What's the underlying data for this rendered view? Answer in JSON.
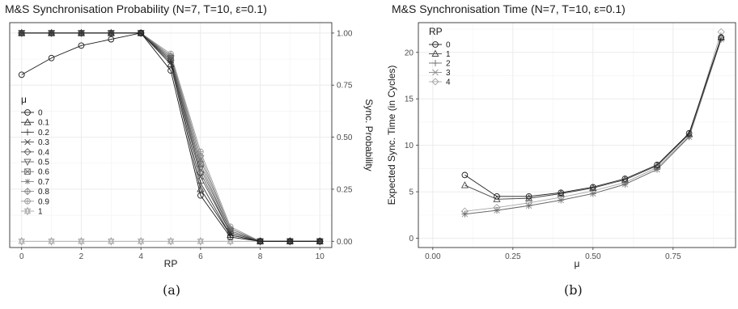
{
  "captions": [
    "(a)",
    "(b)"
  ],
  "chart_data": [
    {
      "type": "line",
      "title": "M&S Synchronisation Probability (N=7, T=10, ε=0.1)",
      "xlabel": "RP",
      "ylabel": "Sync. Probability",
      "y_axis_side": "right",
      "xlim": [
        -0.4,
        10.4
      ],
      "ylim": [
        -0.03,
        1.05
      ],
      "x_ticks": [
        0,
        2,
        4,
        6,
        8,
        10
      ],
      "x_tick_labels": [
        "0",
        "2",
        "4",
        "6",
        "8",
        "10"
      ],
      "y_ticks": [
        0,
        0.25,
        0.5,
        0.75,
        1
      ],
      "y_tick_labels": [
        "0.00",
        "0.25",
        "0.50",
        "0.75",
        "1.00"
      ],
      "grid": true,
      "legend": {
        "title": "μ",
        "placement": "left-middle"
      },
      "x": [
        0,
        1,
        2,
        3,
        4,
        5,
        6,
        7,
        8,
        9,
        10
      ],
      "series": [
        {
          "name": "0",
          "color": "#1a1a1a",
          "marker": "circle",
          "values": [
            0.8,
            0.88,
            0.94,
            0.97,
            1.0,
            0.82,
            0.22,
            0.02,
            0.0,
            0.0,
            0.0
          ]
        },
        {
          "name": "0.1",
          "color": "#2e2e2e",
          "marker": "triangle",
          "values": [
            1.0,
            1.0,
            1.0,
            1.0,
            1.0,
            0.85,
            0.25,
            0.03,
            0.0,
            0.0,
            0.0
          ]
        },
        {
          "name": "0.2",
          "color": "#3c3c3c",
          "marker": "plus",
          "values": [
            1.0,
            1.0,
            1.0,
            1.0,
            1.0,
            0.86,
            0.28,
            0.03,
            0.0,
            0.0,
            0.0
          ]
        },
        {
          "name": "0.3",
          "color": "#4a4a4a",
          "marker": "x",
          "values": [
            1.0,
            1.0,
            1.0,
            1.0,
            1.0,
            0.87,
            0.31,
            0.04,
            0.0,
            0.0,
            0.0
          ]
        },
        {
          "name": "0.4",
          "color": "#575757",
          "marker": "diamond",
          "values": [
            1.0,
            1.0,
            1.0,
            1.0,
            1.0,
            0.87,
            0.33,
            0.04,
            0.0,
            0.0,
            0.0
          ]
        },
        {
          "name": "0.5",
          "color": "#646464",
          "marker": "triangle-down",
          "values": [
            1.0,
            1.0,
            1.0,
            1.0,
            1.0,
            0.88,
            0.35,
            0.05,
            0.0,
            0.0,
            0.0
          ]
        },
        {
          "name": "0.6",
          "color": "#717171",
          "marker": "square-cross",
          "values": [
            1.0,
            1.0,
            1.0,
            1.0,
            1.0,
            0.88,
            0.37,
            0.05,
            0.0,
            0.0,
            0.0
          ]
        },
        {
          "name": "0.7",
          "color": "#7e7e7e",
          "marker": "asterisk",
          "values": [
            1.0,
            1.0,
            1.0,
            1.0,
            1.0,
            0.89,
            0.39,
            0.06,
            0.0,
            0.0,
            0.0
          ]
        },
        {
          "name": "0.8",
          "color": "#8b8b8b",
          "marker": "diamond-plus",
          "values": [
            1.0,
            1.0,
            1.0,
            1.0,
            1.0,
            0.89,
            0.41,
            0.06,
            0.0,
            0.0,
            0.0
          ]
        },
        {
          "name": "0.9",
          "color": "#989898",
          "marker": "circle-plus",
          "values": [
            1.0,
            1.0,
            1.0,
            1.0,
            1.0,
            0.9,
            0.43,
            0.07,
            0.0,
            0.0,
            0.0
          ]
        },
        {
          "name": "1",
          "color": "#a6a6a6",
          "marker": "star",
          "values": [
            0.0,
            0.0,
            0.0,
            0.0,
            0.0,
            0.0,
            0.0,
            0.0,
            0.0,
            0.0,
            0.0
          ]
        }
      ]
    },
    {
      "type": "line",
      "title": "M&S Synchronisation Time (N=7, T=10, ε=0.1)",
      "xlabel": "μ",
      "ylabel": "Expected Sync. Time (in Cycles)",
      "y_axis_side": "left",
      "xlim": [
        -0.045,
        0.945
      ],
      "ylim": [
        -1.0,
        23.2
      ],
      "x_ticks": [
        0,
        0.25,
        0.5,
        0.75
      ],
      "x_tick_labels": [
        "0.00",
        "0.25",
        "0.50",
        "0.75"
      ],
      "y_ticks": [
        0,
        5,
        10,
        15,
        20
      ],
      "y_tick_labels": [
        "0",
        "5",
        "10",
        "15",
        "20"
      ],
      "grid": true,
      "legend": {
        "title": "RP",
        "placement": "top-left"
      },
      "x": [
        0.1,
        0.2,
        0.3,
        0.4,
        0.5,
        0.6,
        0.7,
        0.8,
        0.9
      ],
      "series": [
        {
          "name": "0",
          "color": "#1a1a1a",
          "marker": "circle",
          "values": [
            6.8,
            4.5,
            4.5,
            4.9,
            5.5,
            6.4,
            7.9,
            11.3,
            21.6
          ]
        },
        {
          "name": "1",
          "color": "#444444",
          "marker": "triangle",
          "values": [
            5.7,
            4.2,
            4.3,
            4.8,
            5.4,
            6.3,
            7.8,
            11.2,
            21.6
          ]
        },
        {
          "name": "2",
          "color": "#6a6a6a",
          "marker": "plus",
          "values": [
            2.6,
            3.0,
            3.5,
            4.1,
            4.8,
            5.8,
            7.4,
            10.9,
            21.4
          ]
        },
        {
          "name": "3",
          "color": "#8c8c8c",
          "marker": "x",
          "values": [
            2.6,
            3.0,
            3.5,
            4.1,
            4.8,
            5.8,
            7.4,
            10.9,
            21.4
          ]
        },
        {
          "name": "4",
          "color": "#a6a6a6",
          "marker": "diamond",
          "values": [
            2.9,
            3.3,
            3.8,
            4.4,
            5.1,
            6.0,
            7.6,
            11.0,
            22.2
          ]
        }
      ]
    }
  ]
}
